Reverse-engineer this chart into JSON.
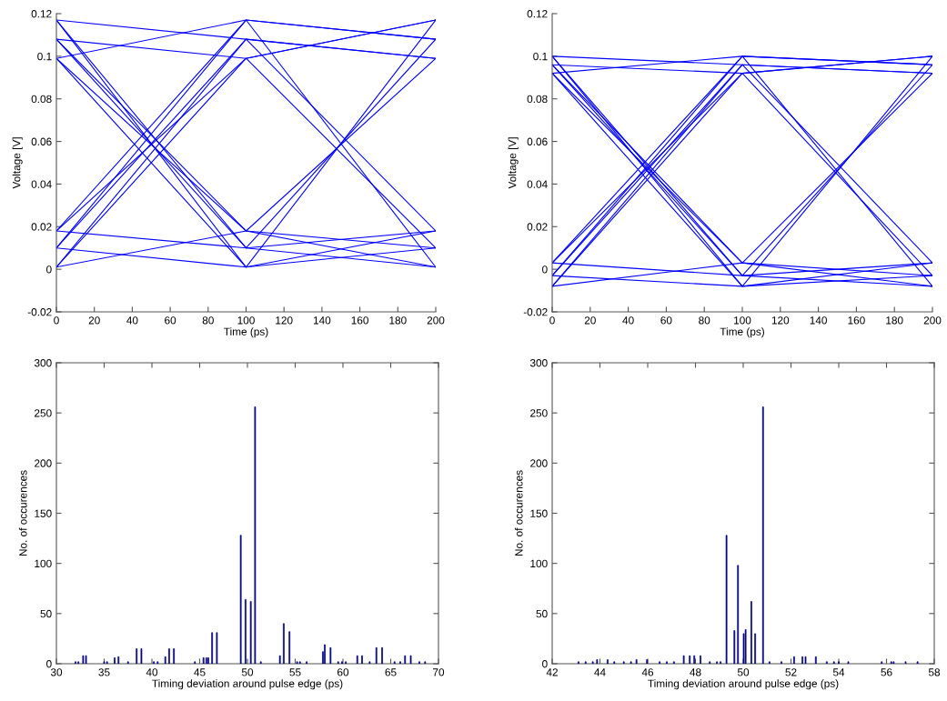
{
  "chart_data": [
    {
      "type": "line",
      "xlabel": "Time (ps)",
      "ylabel": "Voltage [V]",
      "xlim": [
        0,
        200
      ],
      "ylim": [
        -0.02,
        0.12
      ],
      "xticks": [
        0,
        20,
        40,
        60,
        80,
        100,
        120,
        140,
        160,
        180,
        200
      ],
      "yticks": [
        -0.02,
        0,
        0.02,
        0.04,
        0.06,
        0.08,
        0.1,
        0.12
      ],
      "grid": false,
      "legend": false,
      "x": [
        0,
        100,
        200
      ],
      "series": [
        {
          "color": "#0000ff",
          "values": [
            0.117,
            0.001,
            0.117
          ]
        },
        {
          "color": "#0000ff",
          "values": [
            0.108,
            0.01,
            0.108
          ]
        },
        {
          "color": "#0000ff",
          "values": [
            0.099,
            0.018,
            0.099
          ]
        },
        {
          "color": "#0000ff",
          "values": [
            0.117,
            0.01,
            0.018
          ]
        },
        {
          "color": "#0000ff",
          "values": [
            0.108,
            0.018,
            0.001
          ]
        },
        {
          "color": "#0000ff",
          "values": [
            0.099,
            0.001,
            0.01
          ]
        },
        {
          "color": "#0000ff",
          "values": [
            0.018,
            0.117,
            0.001
          ]
        },
        {
          "color": "#0000ff",
          "values": [
            0.01,
            0.108,
            0.018
          ]
        },
        {
          "color": "#0000ff",
          "values": [
            0.001,
            0.099,
            0.01
          ]
        },
        {
          "color": "#0000ff",
          "values": [
            0.018,
            0.099,
            0.117
          ]
        },
        {
          "color": "#0000ff",
          "values": [
            0.01,
            0.117,
            0.108
          ]
        },
        {
          "color": "#0000ff",
          "values": [
            0.001,
            0.108,
            0.099
          ]
        },
        {
          "color": "#0000ff",
          "values": [
            0.117,
            0.108,
            0.099
          ]
        },
        {
          "color": "#0000ff",
          "values": [
            0.108,
            0.099,
            0.117
          ]
        },
        {
          "color": "#0000ff",
          "values": [
            0.099,
            0.117,
            0.108
          ]
        },
        {
          "color": "#0000ff",
          "values": [
            0.018,
            0.01,
            0.001
          ]
        },
        {
          "color": "#0000ff",
          "values": [
            0.01,
            0.001,
            0.018
          ]
        },
        {
          "color": "#0000ff",
          "values": [
            0.001,
            0.018,
            0.01
          ]
        }
      ]
    },
    {
      "type": "line",
      "xlabel": "Time (ps)",
      "ylabel": "Voltage [V]",
      "xlim": [
        0,
        200
      ],
      "ylim": [
        -0.02,
        0.12
      ],
      "xticks": [
        0,
        20,
        40,
        60,
        80,
        100,
        120,
        140,
        160,
        180,
        200
      ],
      "yticks": [
        -0.02,
        0,
        0.02,
        0.04,
        0.06,
        0.08,
        0.1,
        0.12
      ],
      "grid": false,
      "legend": false,
      "x": [
        0,
        100,
        200
      ],
      "series": [
        {
          "color": "#0000ff",
          "values": [
            0.1,
            -0.008,
            0.1
          ]
        },
        {
          "color": "#0000ff",
          "values": [
            0.096,
            -0.003,
            0.096
          ]
        },
        {
          "color": "#0000ff",
          "values": [
            0.092,
            0.003,
            0.092
          ]
        },
        {
          "color": "#0000ff",
          "values": [
            0.1,
            -0.003,
            0.003
          ]
        },
        {
          "color": "#0000ff",
          "values": [
            0.096,
            0.003,
            -0.008
          ]
        },
        {
          "color": "#0000ff",
          "values": [
            0.092,
            -0.008,
            -0.003
          ]
        },
        {
          "color": "#0000ff",
          "values": [
            0.003,
            0.1,
            -0.008
          ]
        },
        {
          "color": "#0000ff",
          "values": [
            -0.003,
            0.096,
            0.003
          ]
        },
        {
          "color": "#0000ff",
          "values": [
            -0.008,
            0.092,
            -0.003
          ]
        },
        {
          "color": "#0000ff",
          "values": [
            0.003,
            0.092,
            0.1
          ]
        },
        {
          "color": "#0000ff",
          "values": [
            -0.003,
            0.1,
            0.096
          ]
        },
        {
          "color": "#0000ff",
          "values": [
            -0.008,
            0.096,
            0.092
          ]
        },
        {
          "color": "#0000ff",
          "values": [
            0.1,
            0.096,
            0.092
          ]
        },
        {
          "color": "#0000ff",
          "values": [
            0.096,
            0.092,
            0.1
          ]
        },
        {
          "color": "#0000ff",
          "values": [
            0.092,
            0.1,
            0.096
          ]
        },
        {
          "color": "#0000ff",
          "values": [
            0.003,
            -0.003,
            -0.008
          ]
        },
        {
          "color": "#0000ff",
          "values": [
            -0.003,
            -0.008,
            0.003
          ]
        },
        {
          "color": "#0000ff",
          "values": [
            -0.008,
            0.003,
            -0.003
          ]
        }
      ]
    },
    {
      "type": "bar",
      "xlabel": "Timing deviation around pulse edge (ps)",
      "ylabel": "No. of occurences",
      "xlim": [
        30,
        70
      ],
      "ylim": [
        0,
        300
      ],
      "xticks": [
        30,
        35,
        40,
        45,
        50,
        55,
        60,
        65,
        70
      ],
      "yticks": [
        0,
        50,
        100,
        150,
        200,
        250,
        300
      ],
      "grid": false,
      "legend": false,
      "color": "#00007f",
      "x": [
        32.0,
        32.3,
        32.8,
        33.1,
        35.0,
        35.3,
        36.1,
        36.5,
        37.5,
        38.4,
        38.9,
        40.2,
        40.6,
        41.4,
        41.8,
        42.3,
        44.5,
        45.4,
        45.7,
        45.9,
        46.3,
        46.8,
        49.3,
        49.8,
        50.35,
        50.8,
        51.4,
        53.4,
        53.8,
        54.4,
        55.2,
        55.5,
        56.2,
        57.9,
        58.1,
        58.7,
        59.5,
        59.9,
        60.3,
        61.5,
        62.0,
        62.8,
        63.5,
        64.1,
        65.4,
        66.0,
        66.5,
        67.1,
        68.0,
        68.6
      ],
      "values": [
        2,
        2,
        8,
        8,
        2,
        2,
        6,
        7,
        2,
        15,
        15,
        2,
        2,
        7,
        15,
        15,
        2,
        6,
        6,
        6,
        31,
        31,
        128,
        64,
        62,
        256,
        2,
        8,
        40,
        32,
        2,
        2,
        2,
        12,
        19,
        16,
        2,
        2,
        2,
        8,
        8,
        2,
        16,
        16,
        2,
        2,
        8,
        8,
        2,
        2
      ]
    },
    {
      "type": "bar",
      "xlabel": "Timing deviation around pulse edge (ps)",
      "ylabel": "No. of occurences",
      "xlim": [
        42,
        58
      ],
      "ylim": [
        0,
        300
      ],
      "xticks": [
        42,
        44,
        46,
        48,
        50,
        52,
        54,
        56,
        58
      ],
      "yticks": [
        0,
        50,
        100,
        150,
        200,
        250,
        300
      ],
      "grid": false,
      "legend": false,
      "color": "#00007f",
      "x": [
        43.1,
        43.4,
        43.7,
        43.88,
        44.32,
        44.6,
        45.0,
        45.3,
        45.53,
        45.97,
        46.5,
        46.8,
        47.1,
        47.51,
        47.76,
        47.95,
        48.21,
        48.6,
        48.9,
        49.05,
        49.3,
        49.63,
        49.78,
        50.02,
        50.1,
        50.34,
        50.5,
        50.83,
        51.1,
        51.6,
        52.13,
        52.48,
        52.61,
        53.04,
        53.5,
        53.8,
        54.0,
        54.4,
        55.8,
        56.2,
        56.3,
        56.8,
        57.3
      ],
      "values": [
        2,
        2,
        2,
        4,
        4,
        2,
        2,
        2,
        4,
        4,
        2,
        2,
        2,
        8,
        8,
        8,
        8,
        2,
        2,
        2,
        128,
        33,
        98,
        30,
        34,
        62,
        30,
        256,
        2,
        2,
        7,
        7,
        7,
        7,
        2,
        2,
        2,
        2,
        2,
        2,
        2,
        2,
        2
      ]
    }
  ]
}
